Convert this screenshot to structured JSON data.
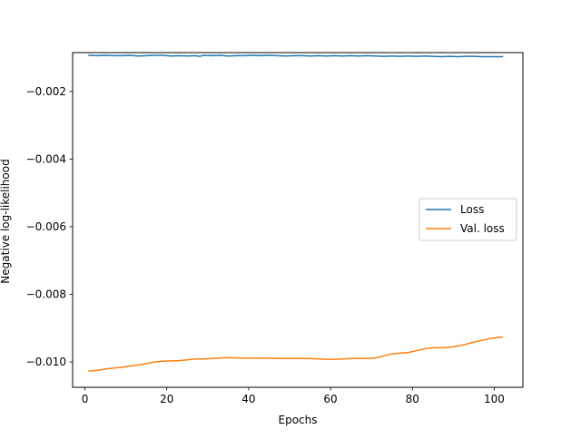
{
  "chart_data": {
    "type": "line",
    "title": "",
    "xlabel": "Epochs",
    "ylabel": "Negative log-likelihood",
    "xlim": [
      -3,
      107
    ],
    "ylim": [
      -0.01075,
      -0.00085
    ],
    "xticks": [
      0,
      20,
      40,
      60,
      80,
      100
    ],
    "xtick_labels": [
      "0",
      "20",
      "40",
      "60",
      "80",
      "100"
    ],
    "yticks": [
      -0.002,
      -0.004,
      -0.006,
      -0.008,
      -0.01
    ],
    "ytick_labels": [
      "−0.002",
      "−0.004",
      "−0.006",
      "−0.008",
      "−0.010"
    ],
    "grid": false,
    "legend": {
      "placement": "center-right"
    },
    "series": [
      {
        "name": "Loss",
        "color": "#1f77b4",
        "x": [
          1,
          3,
          5,
          7,
          9,
          11,
          13,
          15,
          17,
          19,
          21,
          23,
          25,
          27,
          28,
          29,
          31,
          33,
          35,
          37,
          39,
          41,
          43,
          45,
          47,
          49,
          51,
          53,
          55,
          57,
          59,
          61,
          63,
          65,
          67,
          69,
          71,
          73,
          75,
          77,
          79,
          81,
          83,
          85,
          87,
          89,
          91,
          93,
          95,
          97,
          99,
          102
        ],
        "y": [
          -0.00093,
          -0.00094,
          -0.00093,
          -0.00094,
          -0.00094,
          -0.00093,
          -0.00095,
          -0.00094,
          -0.00093,
          -0.00093,
          -0.00095,
          -0.00094,
          -0.00095,
          -0.00094,
          -0.00096,
          -0.00093,
          -0.00094,
          -0.00093,
          -0.00095,
          -0.00094,
          -0.00094,
          -0.00093,
          -0.00094,
          -0.00093,
          -0.00094,
          -0.00095,
          -0.00094,
          -0.00094,
          -0.00095,
          -0.00094,
          -0.00095,
          -0.00094,
          -0.00095,
          -0.00094,
          -0.00095,
          -0.00094,
          -0.00095,
          -0.00096,
          -0.00095,
          -0.00096,
          -0.00095,
          -0.00096,
          -0.00095,
          -0.00096,
          -0.00097,
          -0.00096,
          -0.00097,
          -0.00096,
          -0.00096,
          -0.00097,
          -0.00097,
          -0.00097
        ]
      },
      {
        "name": "Val. loss",
        "color": "#ff7f0e",
        "x": [
          1,
          3,
          5,
          7,
          9,
          11,
          13,
          15,
          17,
          19,
          21,
          23,
          25,
          27,
          29,
          31,
          33,
          35,
          37,
          39,
          41,
          43,
          45,
          47,
          49,
          51,
          53,
          55,
          57,
          59,
          61,
          63,
          65,
          67,
          69,
          71,
          73,
          75,
          77,
          79,
          81,
          83,
          85,
          87,
          89,
          91,
          93,
          95,
          97,
          99,
          102
        ],
        "y": [
          -0.01027,
          -0.01025,
          -0.01021,
          -0.01018,
          -0.01016,
          -0.01012,
          -0.01009,
          -0.01005,
          -0.01,
          -0.00998,
          -0.00997,
          -0.00996,
          -0.00994,
          -0.00991,
          -0.00991,
          -0.0099,
          -0.00988,
          -0.00987,
          -0.00988,
          -0.00989,
          -0.00989,
          -0.00989,
          -0.00989,
          -0.0099,
          -0.0099,
          -0.0099,
          -0.0099,
          -0.0099,
          -0.00991,
          -0.00992,
          -0.00992,
          -0.00991,
          -0.0099,
          -0.0099,
          -0.0099,
          -0.00988,
          -0.00982,
          -0.00976,
          -0.00974,
          -0.00972,
          -0.00967,
          -0.00961,
          -0.00958,
          -0.00958,
          -0.00957,
          -0.00953,
          -0.00948,
          -0.00941,
          -0.00936,
          -0.00931,
          -0.00926
        ]
      }
    ]
  }
}
